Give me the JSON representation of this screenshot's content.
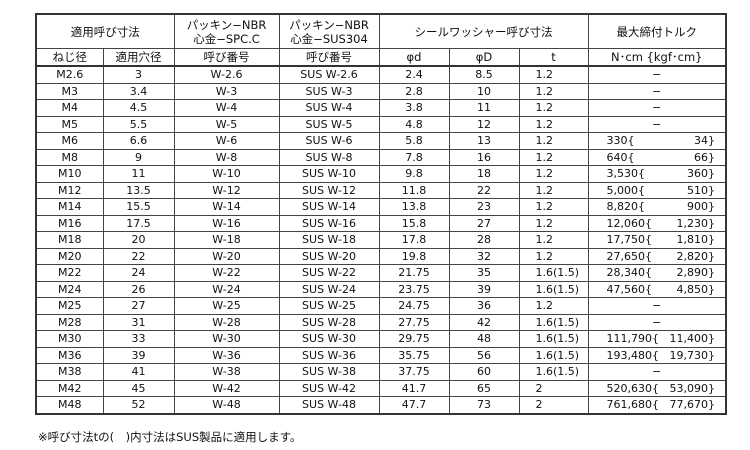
{
  "header": {
    "group_applied": "適用呼び寸法",
    "packing_spc": "パッキン−NBR\n心金−SPC.C",
    "packing_sus": "パッキン−NBR\n心金−SUS304",
    "group_washer": "シールワッシャー呼び寸法",
    "group_torque": "最大締付トルク",
    "col_thread": "ねじ径",
    "col_hole": "適用穴径",
    "col_num_spc": "呼び番号",
    "col_num_sus": "呼び番号",
    "col_d": "φd",
    "col_D": "φD",
    "col_t": "t",
    "col_torque": "N･cm {kgf･cm}"
  },
  "rows": [
    [
      "M2.6",
      "3",
      "W-2.6",
      "SUS W-2.6",
      "2.4",
      "8.5",
      "1.2",
      "−",
      ""
    ],
    [
      "M3",
      "3.4",
      "W-3",
      "SUS W-3",
      "2.8",
      "10",
      "1.2",
      "−",
      ""
    ],
    [
      "M4",
      "4.5",
      "W-4",
      "SUS W-4",
      "3.8",
      "11",
      "1.2",
      "−",
      ""
    ],
    [
      "M5",
      "5.5",
      "W-5",
      "SUS W-5",
      "4.8",
      "12",
      "1.2",
      "−",
      ""
    ],
    [
      "M6",
      "6.6",
      "W-6",
      "SUS W-6",
      "5.8",
      "13",
      "1.2",
      "330{",
      "34}"
    ],
    [
      "M8",
      "9",
      "W-8",
      "SUS W-8",
      "7.8",
      "16",
      "1.2",
      "640{",
      "66}"
    ],
    [
      "M10",
      "11",
      "W-10",
      "SUS W-10",
      "9.8",
      "18",
      "1.2",
      "3,530{",
      "360}"
    ],
    [
      "M12",
      "13.5",
      "W-12",
      "SUS W-12",
      "11.8",
      "22",
      "1.2",
      "5,000{",
      "510}"
    ],
    [
      "M14",
      "15.5",
      "W-14",
      "SUS W-14",
      "13.8",
      "23",
      "1.2",
      "8,820{",
      "900}"
    ],
    [
      "M16",
      "17.5",
      "W-16",
      "SUS W-16",
      "15.8",
      "27",
      "1.2",
      "12,060{",
      "1,230}"
    ],
    [
      "M18",
      "20",
      "W-18",
      "SUS W-18",
      "17.8",
      "28",
      "1.2",
      "17,750{",
      "1,810}"
    ],
    [
      "M20",
      "22",
      "W-20",
      "SUS W-20",
      "19.8",
      "32",
      "1.2",
      "27,650{",
      "2,820}"
    ],
    [
      "M22",
      "24",
      "W-22",
      "SUS W-22",
      "21.75",
      "35",
      "1.6(1.5)",
      "28,340{",
      "2,890}"
    ],
    [
      "M24",
      "26",
      "W-24",
      "SUS W-24",
      "23.75",
      "39",
      "1.6(1.5)",
      "47,560{",
      "4,850}"
    ],
    [
      "M25",
      "27",
      "W-25",
      "SUS W-25",
      "24.75",
      "36",
      "1.2",
      "−",
      ""
    ],
    [
      "M28",
      "31",
      "W-28",
      "SUS W-28",
      "27.75",
      "42",
      "1.6(1.5)",
      "−",
      ""
    ],
    [
      "M30",
      "33",
      "W-30",
      "SUS W-30",
      "29.75",
      "48",
      "1.6(1.5)",
      "111,790{",
      "11,400}"
    ],
    [
      "M36",
      "39",
      "W-36",
      "SUS W-36",
      "35.75",
      "56",
      "1.6(1.5)",
      "193,480{",
      "19,730}"
    ],
    [
      "M38",
      "41",
      "W-38",
      "SUS W-38",
      "37.75",
      "60",
      "1.6(1.5)",
      "−",
      ""
    ],
    [
      "M42",
      "45",
      "W-42",
      "SUS W-42",
      "41.7",
      "65",
      "2",
      "520,630{",
      "53,090}"
    ],
    [
      "M48",
      "52",
      "W-48",
      "SUS W-48",
      "47.7",
      "73",
      "2",
      "761,680{",
      "77,670}"
    ]
  ],
  "footnote": "※呼び寸法tの(　)内寸法はSUS製品に適用します。"
}
